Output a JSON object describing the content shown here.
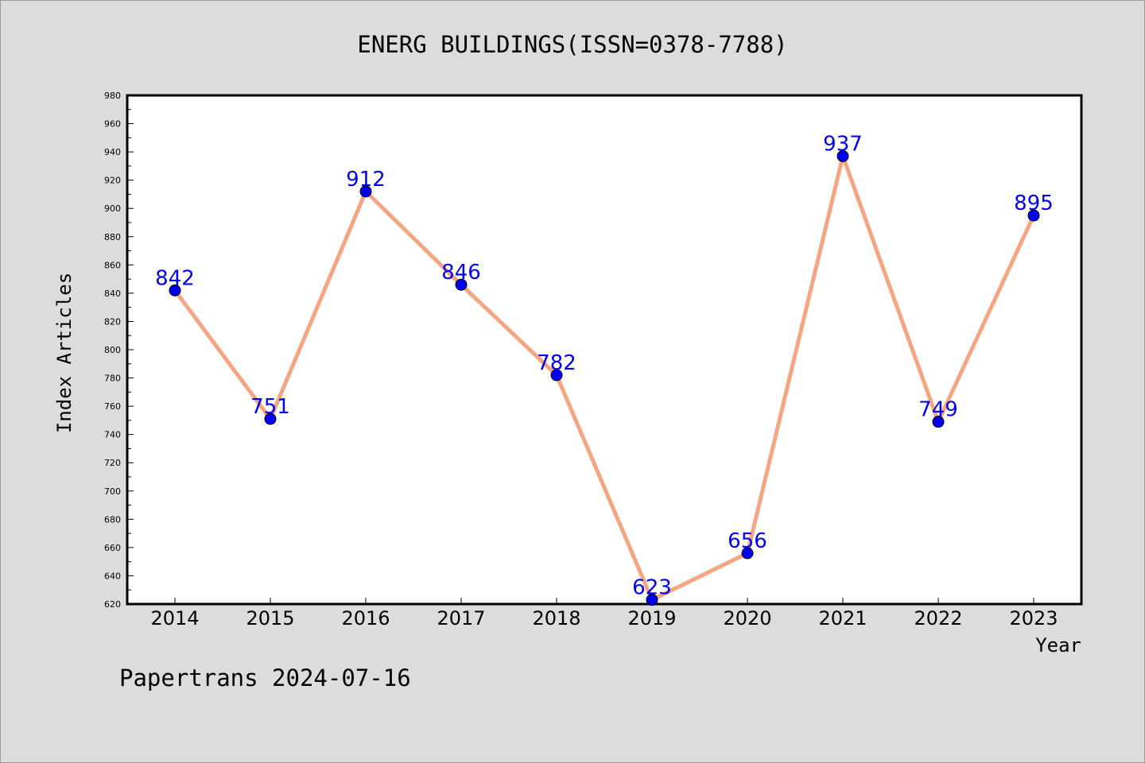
{
  "chart_data": {
    "type": "line",
    "title": "ENERG BUILDINGS(ISSN=0378-7788)",
    "xlabel": "Year",
    "ylabel": "Index Articles",
    "categories": [
      "2014",
      "2015",
      "2016",
      "2017",
      "2018",
      "2019",
      "2020",
      "2021",
      "2022",
      "2023"
    ],
    "series": [
      {
        "values": [
          842,
          751,
          912,
          846,
          782,
          623,
          656,
          937,
          749,
          895
        ]
      }
    ],
    "data_labels": [
      "842",
      "751",
      "912",
      "846",
      "782",
      "623",
      "656",
      "937",
      "749",
      "895"
    ],
    "ylim": [
      620,
      980
    ],
    "yticks": [
      "620",
      "640",
      "660",
      "680",
      "700",
      "720",
      "740",
      "760",
      "780",
      "800",
      "820",
      "840",
      "860",
      "880",
      "900",
      "920",
      "940",
      "960",
      "980"
    ],
    "grid": false,
    "colors": {
      "line": "#f4a582",
      "marker": "#0000ee",
      "label": "#0000ee",
      "background": "#dcdcdc",
      "plot_background": "#ffffff"
    }
  },
  "footer": {
    "text": "Papertrans 2024-07-16"
  }
}
